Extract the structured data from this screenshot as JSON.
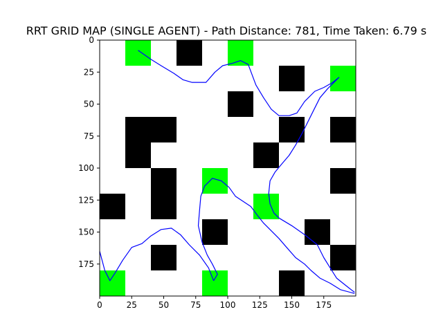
{
  "chart_data": {
    "type": "heatmap",
    "title": "RRT GRID MAP (SINGLE AGENT) - Path Distance: 781, Time Taken: 6.79 s",
    "xlabel": "",
    "ylabel": "",
    "xlim": [
      0,
      200
    ],
    "ylim": [
      200,
      0
    ],
    "grid": false,
    "cell_size": 20,
    "xticks": [
      0,
      25,
      50,
      75,
      100,
      125,
      150,
      175
    ],
    "yticks": [
      0,
      25,
      50,
      75,
      100,
      125,
      150,
      175
    ],
    "colors": {
      "obstacle": "#000000",
      "waypoint": "#00ff00",
      "path": "#0000ff",
      "free": "#ffffff"
    },
    "obstacles": [
      [
        60,
        0
      ],
      [
        140,
        20
      ],
      [
        100,
        40
      ],
      [
        20,
        60
      ],
      [
        40,
        60
      ],
      [
        140,
        60
      ],
      [
        180,
        60
      ],
      [
        20,
        80
      ],
      [
        120,
        80
      ],
      [
        40,
        100
      ],
      [
        180,
        100
      ],
      [
        0,
        120
      ],
      [
        40,
        120
      ],
      [
        80,
        140
      ],
      [
        160,
        140
      ],
      [
        40,
        160
      ],
      [
        180,
        160
      ],
      [
        140,
        180
      ]
    ],
    "waypoints": [
      [
        20,
        0
      ],
      [
        100,
        0
      ],
      [
        180,
        20
      ],
      [
        80,
        100
      ],
      [
        120,
        120
      ],
      [
        0,
        180
      ],
      [
        80,
        180
      ]
    ],
    "path_segments": [
      [
        [
          30,
          8
        ],
        [
          40,
          15
        ],
        [
          48,
          20
        ],
        [
          58,
          26
        ],
        [
          65,
          31
        ],
        [
          72,
          33
        ],
        [
          83,
          33
        ],
        [
          90,
          25
        ],
        [
          96,
          20
        ],
        [
          104,
          18
        ],
        [
          110,
          16
        ],
        [
          116,
          19
        ],
        [
          122,
          35
        ],
        [
          128,
          45
        ],
        [
          134,
          54
        ],
        [
          140,
          59
        ],
        [
          148,
          59
        ],
        [
          154,
          57
        ],
        [
          160,
          48
        ],
        [
          168,
          40
        ],
        [
          175,
          37
        ],
        [
          182,
          33
        ],
        [
          187,
          29
        ]
      ],
      [
        [
          187,
          29
        ],
        [
          178,
          38
        ],
        [
          172,
          45
        ],
        [
          167,
          55
        ],
        [
          162,
          65
        ],
        [
          158,
          73
        ],
        [
          153,
          82
        ],
        [
          148,
          90
        ],
        [
          142,
          97
        ],
        [
          137,
          103
        ],
        [
          133,
          110
        ],
        [
          132,
          120
        ],
        [
          133,
          128
        ],
        [
          136,
          135
        ],
        [
          140,
          139
        ],
        [
          150,
          145
        ],
        [
          160,
          152
        ],
        [
          170,
          160
        ],
        [
          175,
          170
        ],
        [
          180,
          178
        ],
        [
          185,
          186
        ],
        [
          190,
          190
        ],
        [
          195,
          194
        ],
        [
          199,
          197
        ]
      ],
      [
        [
          199,
          198
        ],
        [
          188,
          195
        ],
        [
          180,
          190
        ],
        [
          172,
          186
        ],
        [
          165,
          180
        ],
        [
          160,
          175
        ],
        [
          153,
          170
        ],
        [
          146,
          162
        ],
        [
          140,
          155
        ],
        [
          134,
          149
        ],
        [
          128,
          143
        ],
        [
          124,
          138
        ],
        [
          118,
          130
        ],
        [
          112,
          126
        ],
        [
          106,
          122
        ],
        [
          101,
          115
        ],
        [
          95,
          110
        ],
        [
          88,
          108
        ],
        [
          82,
          114
        ],
        [
          79,
          122
        ],
        [
          78,
          133
        ],
        [
          77,
          145
        ],
        [
          80,
          158
        ],
        [
          84,
          168
        ],
        [
          88,
          175
        ],
        [
          92,
          183
        ],
        [
          89,
          188
        ]
      ],
      [
        [
          89,
          188
        ],
        [
          85,
          178
        ],
        [
          78,
          168
        ],
        [
          70,
          160
        ],
        [
          63,
          152
        ],
        [
          56,
          147
        ],
        [
          48,
          148
        ],
        [
          40,
          153
        ],
        [
          33,
          159
        ],
        [
          25,
          162
        ],
        [
          18,
          172
        ],
        [
          12,
          182
        ],
        [
          8,
          188
        ],
        [
          4,
          180
        ],
        [
          0,
          165
        ]
      ]
    ]
  }
}
